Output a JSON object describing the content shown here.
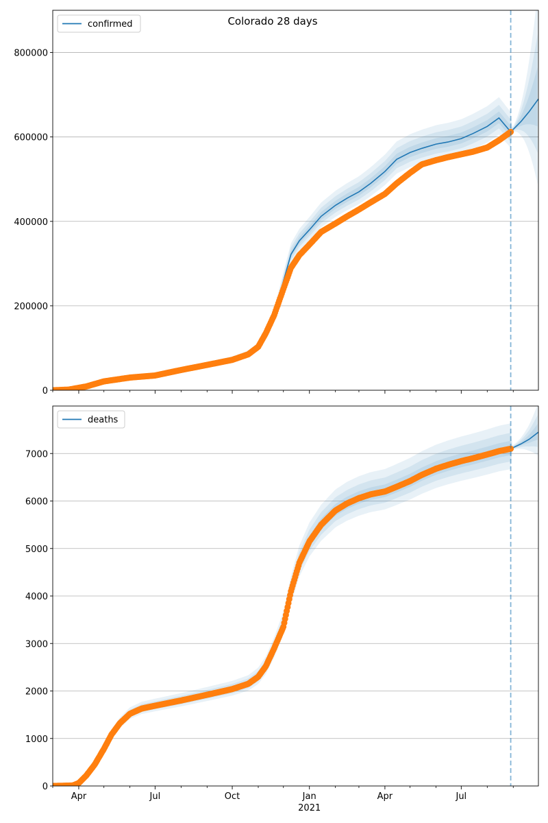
{
  "figure": {
    "title": "Colorado 28 days"
  },
  "chart_data": [
    {
      "type": "line",
      "panel": "confirmed",
      "legend": [
        "confirmed"
      ],
      "legend_position": "top-left",
      "grid": "horizontal",
      "xlim": [
        "2020-03-01",
        "2021-10-01"
      ],
      "ylim": [
        0,
        900000
      ],
      "yticks": [
        0,
        200000,
        400000,
        600000,
        800000
      ],
      "ytick_labels": [
        "0",
        "200000",
        "400000",
        "600000",
        "800000"
      ],
      "forecast_start": "2021-08-29",
      "series": [
        {
          "name": "confirmed",
          "kind": "model",
          "color": "#1f77b4",
          "x": [
            "2020-03-01",
            "2020-04-01",
            "2020-05-01",
            "2020-06-01",
            "2020-07-01",
            "2020-08-01",
            "2020-09-01",
            "2020-10-01",
            "2020-10-20",
            "2020-11-01",
            "2020-11-10",
            "2020-11-20",
            "2020-12-01",
            "2020-12-10",
            "2020-12-20",
            "2021-01-01",
            "2021-01-15",
            "2021-02-01",
            "2021-02-15",
            "2021-03-01",
            "2021-03-15",
            "2021-04-01",
            "2021-04-15",
            "2021-05-01",
            "2021-05-15",
            "2021-06-01",
            "2021-06-15",
            "2021-07-01",
            "2021-07-15",
            "2021-08-01",
            "2021-08-15",
            "2021-08-29",
            "2021-09-10",
            "2021-09-20",
            "2021-10-01"
          ],
          "y": [
            0,
            6000,
            21000,
            30000,
            35000,
            48000,
            60000,
            72000,
            85000,
            103000,
            135000,
            178000,
            258000,
            322000,
            354000,
            380000,
            412000,
            438000,
            455000,
            470000,
            490000,
            518000,
            547000,
            563000,
            573000,
            583000,
            588000,
            596000,
            608000,
            625000,
            645000,
            612000,
            636000,
            660000,
            690000
          ]
        },
        {
          "name": "",
          "kind": "observed",
          "color": "#ff7f0e",
          "x": [
            "2020-03-01",
            "2020-03-20",
            "2020-04-10",
            "2020-05-01",
            "2020-06-01",
            "2020-07-01",
            "2020-08-01",
            "2020-09-01",
            "2020-10-01",
            "2020-10-20",
            "2020-11-01",
            "2020-11-10",
            "2020-11-20",
            "2020-12-01",
            "2020-12-10",
            "2020-12-20",
            "2021-01-01",
            "2021-01-15",
            "2021-02-01",
            "2021-02-15",
            "2021-03-01",
            "2021-03-15",
            "2021-04-01",
            "2021-04-15",
            "2021-05-01",
            "2021-05-15",
            "2021-06-01",
            "2021-06-15",
            "2021-07-01",
            "2021-07-15",
            "2021-08-01",
            "2021-08-15",
            "2021-08-29"
          ],
          "y": [
            0,
            1500,
            9000,
            21000,
            30000,
            35000,
            48000,
            60000,
            72000,
            85000,
            103000,
            135000,
            178000,
            240000,
            290000,
            320000,
            345000,
            375000,
            395000,
            412000,
            428000,
            445000,
            465000,
            490000,
            515000,
            535000,
            545000,
            552000,
            559000,
            565000,
            575000,
            592000,
            612000
          ]
        }
      ]
    },
    {
      "type": "line",
      "panel": "deaths",
      "legend": [
        "deaths"
      ],
      "legend_position": "top-left",
      "grid": "horizontal",
      "xlim": [
        "2020-03-01",
        "2021-10-01"
      ],
      "ylim": [
        0,
        8000
      ],
      "yticks": [
        0,
        1000,
        2000,
        3000,
        4000,
        5000,
        6000,
        7000
      ],
      "ytick_labels": [
        "0",
        "1000",
        "2000",
        "3000",
        "4000",
        "5000",
        "6000",
        "7000"
      ],
      "xticks": [
        "2020-04-01",
        "2020-07-01",
        "2020-10-01",
        "2021-01-01",
        "2021-04-01",
        "2021-07-01"
      ],
      "xtick_labels": [
        "Apr",
        "Jul",
        "Oct",
        "Jan",
        "Apr",
        "Jul"
      ],
      "year_label": "2021",
      "forecast_start": "2021-08-29",
      "series": [
        {
          "name": "deaths",
          "kind": "model",
          "color": "#1f77b4",
          "x": [
            "2020-03-01",
            "2020-03-25",
            "2020-04-01",
            "2020-04-10",
            "2020-04-20",
            "2020-05-01",
            "2020-05-10",
            "2020-05-20",
            "2020-06-01",
            "2020-06-15",
            "2020-07-01",
            "2020-08-01",
            "2020-09-01",
            "2020-10-01",
            "2020-10-20",
            "2020-11-01",
            "2020-11-10",
            "2020-11-20",
            "2020-12-01",
            "2020-12-10",
            "2020-12-20",
            "2021-01-01",
            "2021-01-15",
            "2021-02-01",
            "2021-02-15",
            "2021-03-01",
            "2021-03-15",
            "2021-04-01",
            "2021-04-15",
            "2021-05-01",
            "2021-05-15",
            "2021-06-01",
            "2021-06-15",
            "2021-07-01",
            "2021-07-15",
            "2021-08-01",
            "2021-08-15",
            "2021-08-29",
            "2021-09-10",
            "2021-09-20",
            "2021-10-01"
          ],
          "y": [
            0,
            10,
            60,
            220,
            450,
            780,
            1080,
            1320,
            1520,
            1630,
            1690,
            1800,
            1920,
            2040,
            2150,
            2300,
            2520,
            2900,
            3400,
            4100,
            4700,
            5150,
            5500,
            5800,
            5950,
            6060,
            6140,
            6200,
            6300,
            6420,
            6550,
            6680,
            6760,
            6840,
            6900,
            6980,
            7050,
            7100,
            7200,
            7300,
            7450
          ]
        },
        {
          "name": "",
          "kind": "observed",
          "color": "#ff7f0e",
          "x": [
            "2020-03-01",
            "2020-03-25",
            "2020-04-01",
            "2020-04-10",
            "2020-04-20",
            "2020-05-01",
            "2020-05-10",
            "2020-05-20",
            "2020-06-01",
            "2020-06-15",
            "2020-07-01",
            "2020-08-01",
            "2020-09-01",
            "2020-10-01",
            "2020-10-20",
            "2020-11-01",
            "2020-11-10",
            "2020-11-20",
            "2020-12-01",
            "2020-12-10",
            "2020-12-20",
            "2021-01-01",
            "2021-01-15",
            "2021-02-01",
            "2021-02-15",
            "2021-03-01",
            "2021-03-15",
            "2021-04-01",
            "2021-04-15",
            "2021-05-01",
            "2021-05-15",
            "2021-06-01",
            "2021-06-15",
            "2021-07-01",
            "2021-07-15",
            "2021-08-01",
            "2021-08-15",
            "2021-08-29"
          ],
          "y": [
            0,
            10,
            60,
            220,
            450,
            780,
            1080,
            1320,
            1520,
            1630,
            1690,
            1800,
            1920,
            2040,
            2150,
            2300,
            2520,
            2900,
            3350,
            4100,
            4700,
            5150,
            5500,
            5800,
            5950,
            6060,
            6140,
            6200,
            6300,
            6420,
            6550,
            6680,
            6760,
            6840,
            6900,
            6980,
            7050,
            7100
          ]
        }
      ]
    }
  ]
}
